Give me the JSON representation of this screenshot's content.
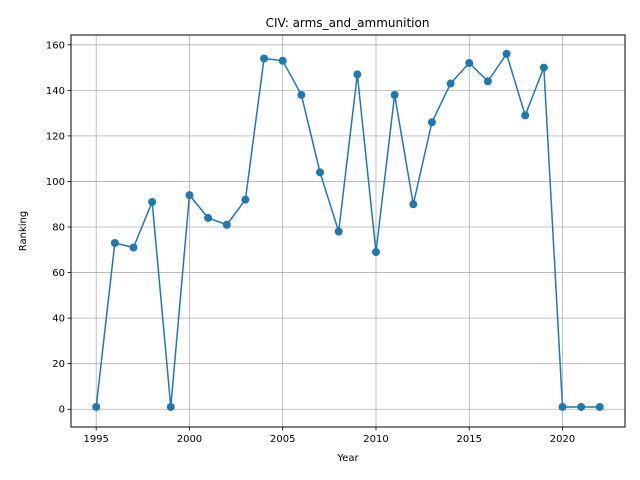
{
  "chart_data": {
    "type": "line",
    "title": "CIV: arms_and_ammunition",
    "xlabel": "Year",
    "ylabel": "Ranking",
    "xlim": [
      1993.65,
      2023.35
    ],
    "ylim": [
      -7.8,
      164.3
    ],
    "x_ticks": [
      1995,
      2000,
      2005,
      2010,
      2015,
      2020
    ],
    "y_ticks": [
      0,
      20,
      40,
      60,
      80,
      100,
      120,
      140,
      160
    ],
    "grid": true,
    "color": "#1f77b4",
    "marker": "circle",
    "series": [
      {
        "x": [
          1995,
          1996,
          1997,
          1998,
          1999,
          2000,
          2001,
          2002,
          2003,
          2004,
          2005,
          2006,
          2007,
          2008,
          2009,
          2010,
          2011,
          2012,
          2013,
          2014,
          2015,
          2016,
          2017,
          2018,
          2019,
          2020,
          2021,
          2022
        ],
        "values": [
          1,
          73,
          71,
          91,
          1,
          94,
          84,
          81,
          92,
          154,
          153,
          138,
          104,
          78,
          147,
          69,
          138,
          90,
          126,
          143,
          152,
          144,
          156,
          129,
          150,
          1,
          1,
          1
        ]
      }
    ]
  }
}
